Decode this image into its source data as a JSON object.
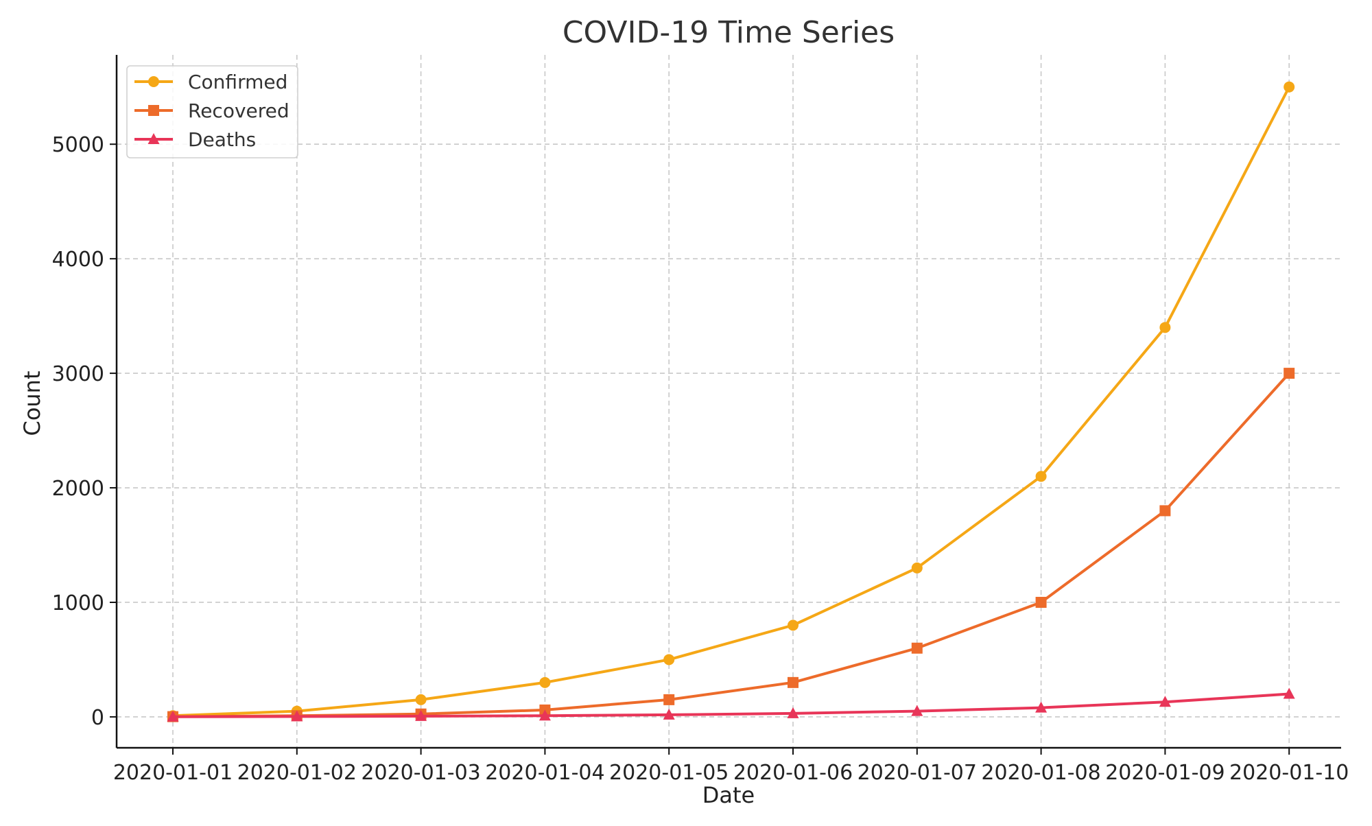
{
  "chart_data": {
    "type": "line",
    "title": "COVID-19 Time Series",
    "xlabel": "Date",
    "ylabel": "Count",
    "categories": [
      "2020-01-01",
      "2020-01-02",
      "2020-01-03",
      "2020-01-04",
      "2020-01-05",
      "2020-01-06",
      "2020-01-07",
      "2020-01-08",
      "2020-01-09",
      "2020-01-10"
    ],
    "y_ticks": [
      "0",
      "1000",
      "2000",
      "3000",
      "4000",
      "5000"
    ],
    "ylim": [
      -270,
      5780
    ],
    "grid": true,
    "legend_position": "top-left",
    "series": [
      {
        "name": "Confirmed",
        "marker": "circle",
        "color": "#f5a716",
        "values": [
          10,
          50,
          150,
          300,
          500,
          800,
          1300,
          2100,
          3400,
          5500
        ]
      },
      {
        "name": "Recovered",
        "marker": "square",
        "color": "#ed6b2a",
        "values": [
          2,
          10,
          25,
          60,
          150,
          300,
          600,
          1000,
          1800,
          3000
        ]
      },
      {
        "name": "Deaths",
        "marker": "triangle",
        "color": "#e83558",
        "values": [
          1,
          3,
          6,
          10,
          18,
          30,
          50,
          80,
          130,
          200
        ]
      }
    ]
  }
}
